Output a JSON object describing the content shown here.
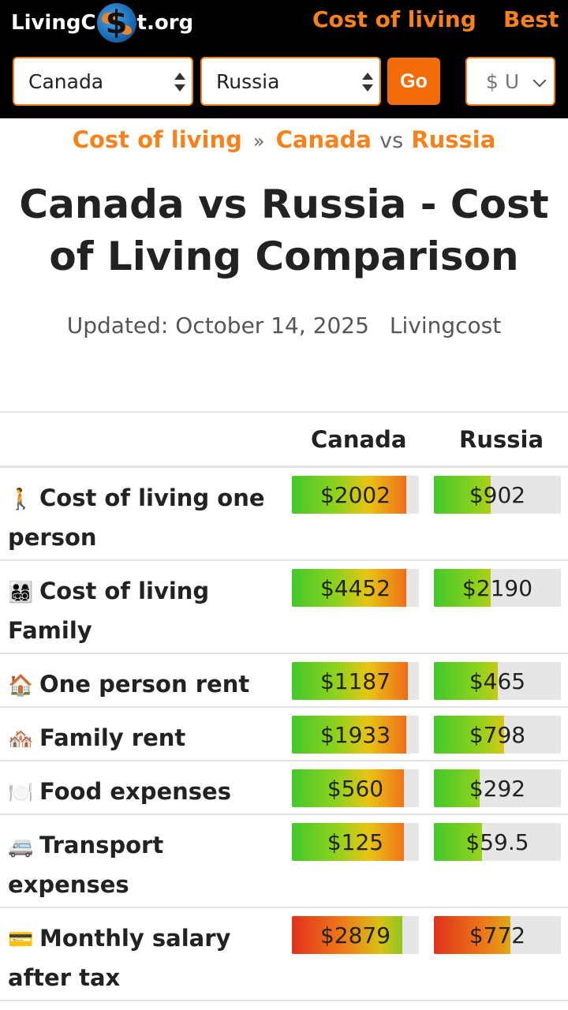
{
  "header": {
    "logo": {
      "prefix": "LivingC",
      "dollar": "$",
      "suffix": "t.org"
    },
    "nav": {
      "cost_of_living": "Cost of living",
      "best": "Best"
    },
    "country_a": "Canada",
    "country_b": "Russia",
    "go_label": "Go",
    "currency": "$ U"
  },
  "breadcrumb": {
    "home": "Cost of living",
    "sep": "»",
    "country_a": "Canada",
    "vs": "vs",
    "country_b": "Russia"
  },
  "title": "Canada vs Russia - Cost of Living Comparison",
  "updated": {
    "text": "Updated: October 14, 2025",
    "source": "Livingcost"
  },
  "table": {
    "col_a": "Canada",
    "col_b": "Russia",
    "rows": [
      {
        "emoji": "🚶",
        "label": "Cost of living one person",
        "a": "$2002",
        "b": "$902",
        "a_fill": 0.9,
        "b_fill": 0.45
      },
      {
        "emoji": "👨‍👩‍👧‍👦",
        "label": "Cost of living Family",
        "a": "$4452",
        "b": "$2190",
        "a_fill": 0.9,
        "b_fill": 0.45
      },
      {
        "emoji": "🏠",
        "label": "One person rent",
        "a": "$1187",
        "b": "$465",
        "a_fill": 0.91,
        "b_fill": 0.5
      },
      {
        "emoji": "🏘️",
        "label": "Family rent",
        "a": "$1933",
        "b": "$798",
        "a_fill": 0.9,
        "b_fill": 0.55
      },
      {
        "emoji": "🍽️",
        "label": "Food expenses",
        "a": "$560",
        "b": "$292",
        "a_fill": 0.88,
        "b_fill": 0.36
      },
      {
        "emoji": "🚐",
        "label": "Transport expenses",
        "a": "$125",
        "b": "$59.5",
        "a_fill": 0.88,
        "b_fill": 0.38
      },
      {
        "emoji": "💳",
        "label": "Monthly salary after tax",
        "a": "$2879",
        "b": "$772",
        "a_fill": 0.87,
        "b_fill": 0.6
      }
    ]
  },
  "colors": {
    "accent": "#f7821b",
    "go": "#f26c0c",
    "bar_bg": "#e6e6e6"
  }
}
